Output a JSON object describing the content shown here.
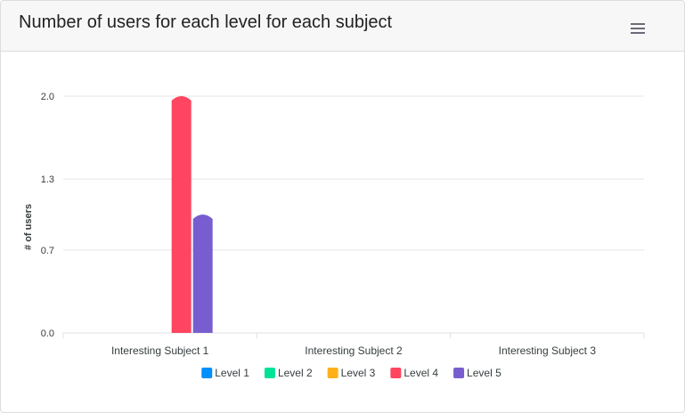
{
  "header": {
    "title": "Number of users for each level for each subject",
    "menu_icon": "hamburger-menu-icon"
  },
  "chart_data": {
    "type": "bar",
    "title": "Number of users for each level for each subject",
    "xlabel": "",
    "ylabel": "# of users",
    "categories": [
      "Interesting Subject 1",
      "Interesting Subject 2",
      "Interesting Subject 3"
    ],
    "yticks": [
      "0.0",
      "0.7",
      "1.3",
      "2.0"
    ],
    "ylim": [
      0,
      2
    ],
    "grid": true,
    "legend_position": "bottom",
    "series": [
      {
        "name": "Level 1",
        "color": "#008ffb",
        "values": [
          0,
          0,
          0
        ]
      },
      {
        "name": "Level 2",
        "color": "#00e396",
        "values": [
          0,
          0,
          0
        ]
      },
      {
        "name": "Level 3",
        "color": "#feb019",
        "values": [
          0,
          0,
          0
        ]
      },
      {
        "name": "Level 4",
        "color": "#ff4560",
        "values": [
          2,
          0,
          0
        ]
      },
      {
        "name": "Level 5",
        "color": "#775dd0",
        "values": [
          1,
          0,
          0
        ]
      }
    ]
  }
}
